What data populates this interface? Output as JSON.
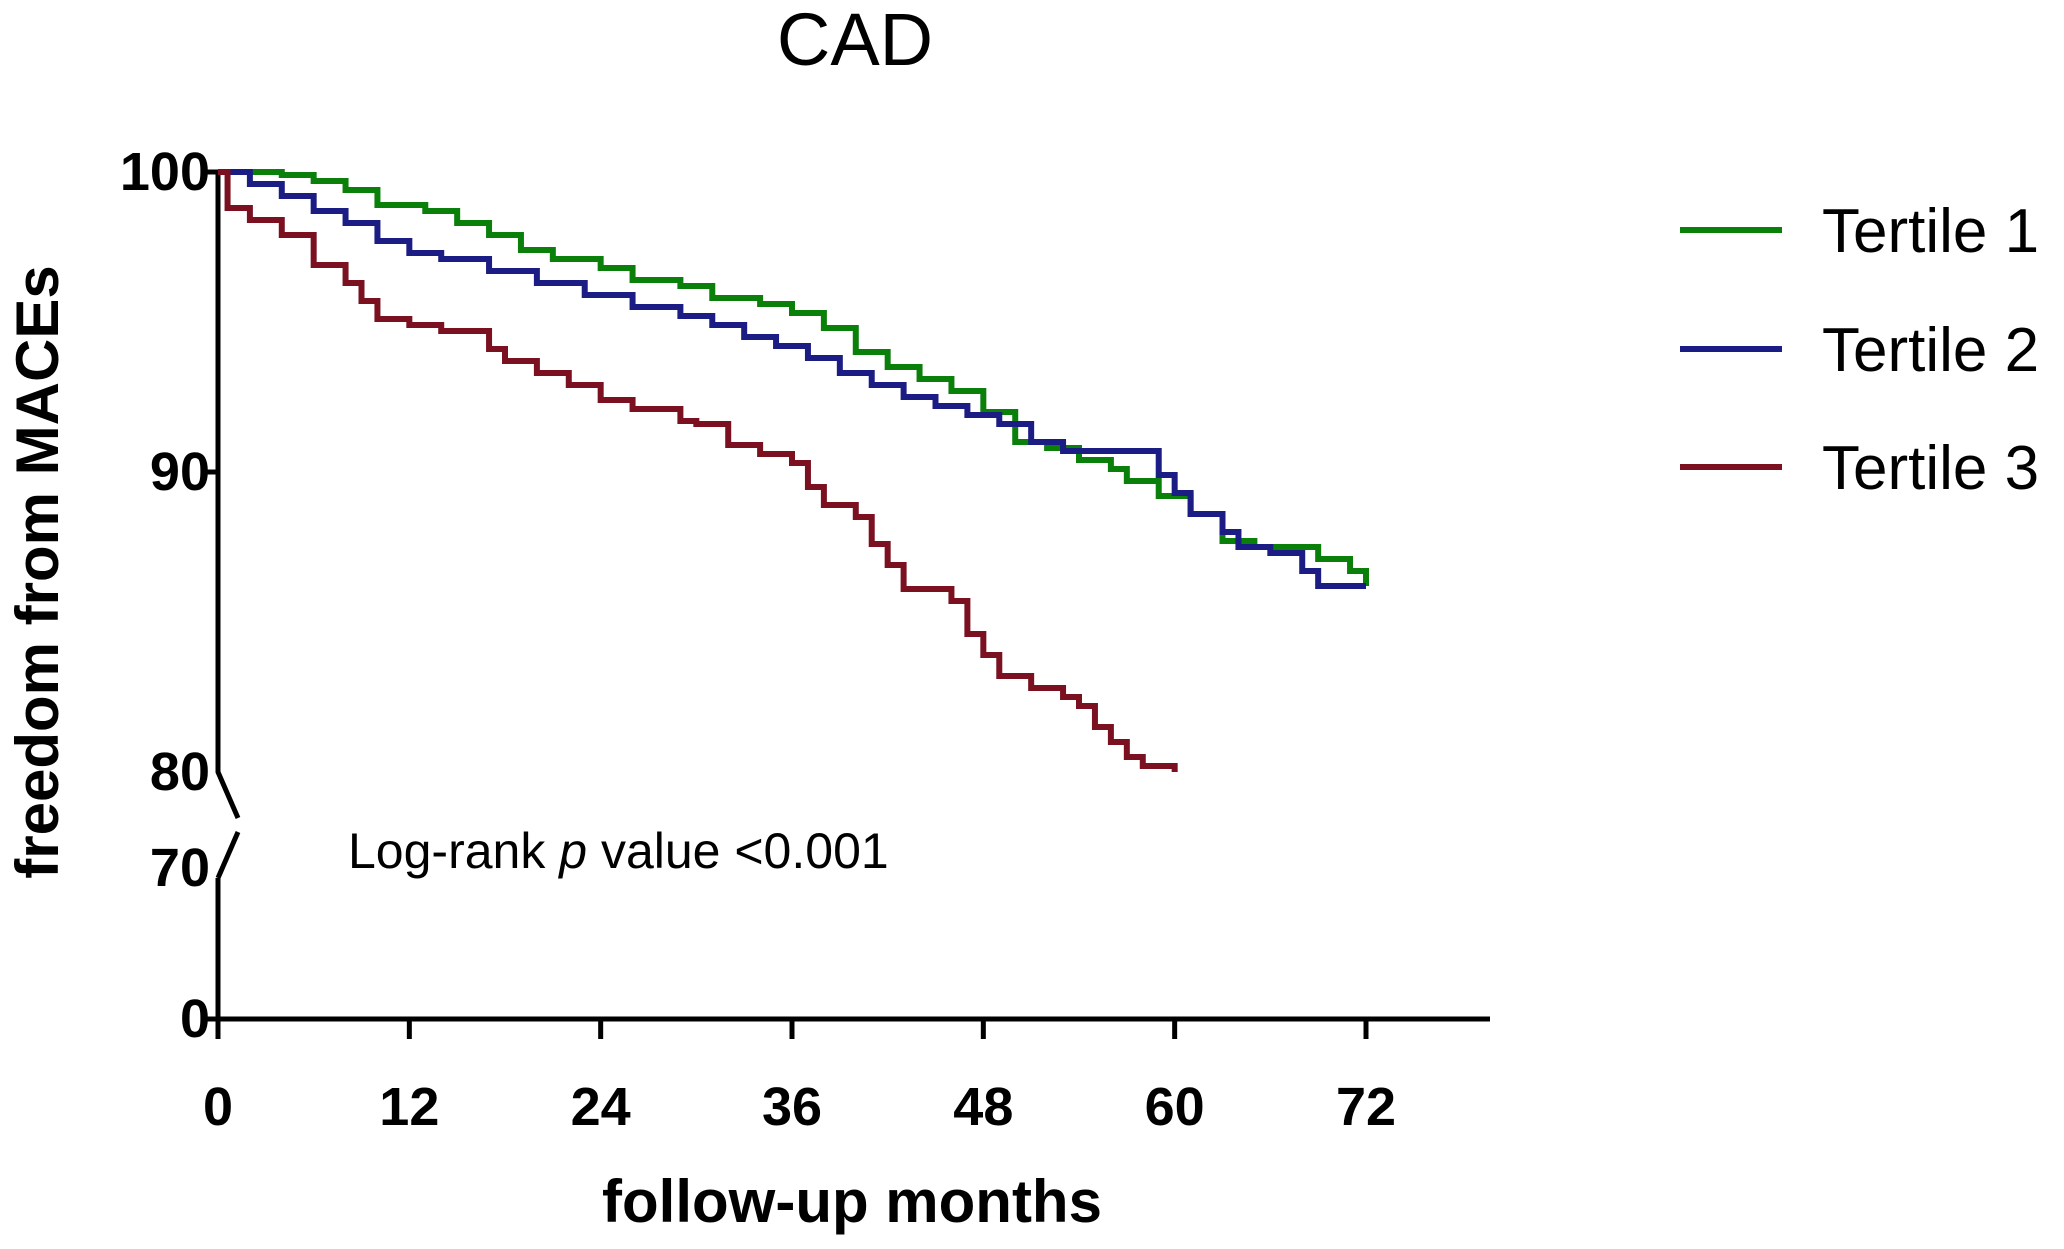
{
  "chart_data": {
    "type": "line",
    "step": true,
    "title": "CAD",
    "xlabel": "follow-up months",
    "ylabel": "freedom from MACEs",
    "xlim": [
      0,
      80
    ],
    "xticks": [
      0,
      12,
      24,
      36,
      48,
      60,
      72
    ],
    "xtick_labels": [
      "0",
      "12",
      "24",
      "36",
      "48",
      "60",
      "72"
    ],
    "yticks": [
      100,
      90,
      80,
      70,
      0
    ],
    "ytick_labels": [
      "100",
      "90",
      "80",
      "70",
      "0"
    ],
    "y_segments": [
      [
        80,
        100
      ],
      [
        0,
        70
      ]
    ],
    "axis_break": true,
    "annotation": {
      "prefix": "Log-rank ",
      "p": "p",
      "suffix": " value <0.001"
    },
    "legend_position": "top-right",
    "series": [
      {
        "name": "Tertile 1",
        "color": "#0a7f0a",
        "points": [
          [
            0,
            100
          ],
          [
            4,
            99.9
          ],
          [
            6,
            99.7
          ],
          [
            8,
            99.4
          ],
          [
            10,
            98.9
          ],
          [
            13,
            98.7
          ],
          [
            15,
            98.3
          ],
          [
            17,
            97.9
          ],
          [
            19,
            97.4
          ],
          [
            21,
            97.1
          ],
          [
            24,
            96.8
          ],
          [
            26,
            96.4
          ],
          [
            29,
            96.2
          ],
          [
            31,
            95.8
          ],
          [
            34,
            95.6
          ],
          [
            36,
            95.3
          ],
          [
            38,
            94.8
          ],
          [
            40,
            94.0
          ],
          [
            42,
            93.5
          ],
          [
            44,
            93.1
          ],
          [
            46,
            92.7
          ],
          [
            48,
            92.0
          ],
          [
            50,
            91.0
          ],
          [
            52,
            90.8
          ],
          [
            54,
            90.4
          ],
          [
            56,
            90.1
          ],
          [
            57,
            89.7
          ],
          [
            59,
            89.2
          ],
          [
            61,
            88.6
          ],
          [
            63,
            87.7
          ],
          [
            65,
            87.5
          ],
          [
            69,
            87.1
          ],
          [
            71,
            86.7
          ],
          [
            72,
            86.2
          ]
        ]
      },
      {
        "name": "Tertile 2",
        "color": "#1c1c85",
        "points": [
          [
            0,
            100
          ],
          [
            2,
            99.6
          ],
          [
            4,
            99.2
          ],
          [
            6,
            98.7
          ],
          [
            8,
            98.3
          ],
          [
            10,
            97.7
          ],
          [
            12,
            97.3
          ],
          [
            14,
            97.1
          ],
          [
            17,
            96.7
          ],
          [
            20,
            96.3
          ],
          [
            23,
            95.9
          ],
          [
            26,
            95.5
          ],
          [
            29,
            95.2
          ],
          [
            31,
            94.9
          ],
          [
            33,
            94.5
          ],
          [
            35,
            94.2
          ],
          [
            37,
            93.8
          ],
          [
            39,
            93.3
          ],
          [
            41,
            92.9
          ],
          [
            43,
            92.5
          ],
          [
            45,
            92.2
          ],
          [
            47,
            91.9
          ],
          [
            49,
            91.6
          ],
          [
            51,
            91.0
          ],
          [
            53,
            90.7
          ],
          [
            59,
            89.9
          ],
          [
            60,
            89.3
          ],
          [
            61,
            88.6
          ],
          [
            63,
            88.0
          ],
          [
            64,
            87.5
          ],
          [
            66,
            87.3
          ],
          [
            68,
            86.7
          ],
          [
            69,
            86.2
          ],
          [
            72,
            86.2
          ]
        ]
      },
      {
        "name": "Tertile 3",
        "color": "#7a1020",
        "points": [
          [
            0,
            100
          ],
          [
            0.6,
            98.8
          ],
          [
            2,
            98.4
          ],
          [
            4,
            97.9
          ],
          [
            6,
            96.9
          ],
          [
            8,
            96.3
          ],
          [
            9,
            95.7
          ],
          [
            10,
            95.1
          ],
          [
            12,
            94.9
          ],
          [
            14,
            94.7
          ],
          [
            17,
            94.1
          ],
          [
            18,
            93.7
          ],
          [
            20,
            93.3
          ],
          [
            22,
            92.9
          ],
          [
            24,
            92.4
          ],
          [
            26,
            92.1
          ],
          [
            29,
            91.7
          ],
          [
            30,
            91.6
          ],
          [
            32,
            90.9
          ],
          [
            34,
            90.6
          ],
          [
            36,
            90.3
          ],
          [
            37,
            89.5
          ],
          [
            38,
            88.9
          ],
          [
            40,
            88.5
          ],
          [
            41,
            87.6
          ],
          [
            42,
            86.9
          ],
          [
            43,
            86.1
          ],
          [
            46,
            85.7
          ],
          [
            47,
            84.6
          ],
          [
            48,
            83.9
          ],
          [
            49,
            83.2
          ],
          [
            51,
            82.8
          ],
          [
            53,
            82.5
          ],
          [
            54,
            82.2
          ],
          [
            55,
            81.5
          ],
          [
            56,
            81.0
          ],
          [
            57,
            80.5
          ],
          [
            58,
            80.2
          ],
          [
            60,
            80.0
          ]
        ]
      }
    ]
  }
}
